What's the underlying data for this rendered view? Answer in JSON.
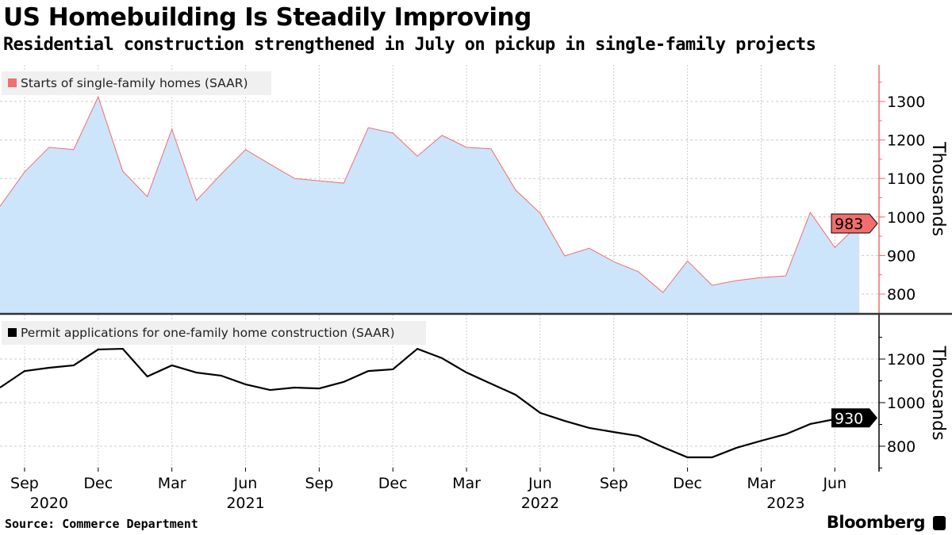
{
  "title": "US Homebuilding Is Steadily Improving",
  "subtitle": "Residential construction strengthened in July on pickup in single-family projects",
  "source": "Source: Commerce Department",
  "brand": "Bloomberg",
  "chart_data": [
    {
      "type": "area",
      "legend": "Starts of single-family homes (SAAR)",
      "ylabel": "Thousands",
      "yticks": [
        800,
        900,
        1000,
        1100,
        1200,
        1300
      ],
      "ylim": [
        750,
        1390
      ],
      "grid": true,
      "legend_position": "top-left",
      "line_color": "#f26d6d",
      "fill_color": "#cce5fb",
      "last_value_label": "983",
      "x": [
        "2020-08",
        "2020-09",
        "2020-10",
        "2020-11",
        "2020-12",
        "2021-01",
        "2021-02",
        "2021-03",
        "2021-04",
        "2021-05",
        "2021-06",
        "2021-07",
        "2021-08",
        "2021-09",
        "2021-10",
        "2021-11",
        "2021-12",
        "2022-01",
        "2022-02",
        "2022-03",
        "2022-04",
        "2022-05",
        "2022-06",
        "2022-07",
        "2022-08",
        "2022-09",
        "2022-10",
        "2022-11",
        "2022-12",
        "2023-01",
        "2023-02",
        "2023-03",
        "2023-04",
        "2023-05",
        "2023-06",
        "2023-07"
      ],
      "values": [
        1028,
        1117,
        1181,
        1175,
        1312,
        1119,
        1053,
        1228,
        1043,
        1111,
        1175,
        1137,
        1100,
        1094,
        1088,
        1232,
        1218,
        1158,
        1212,
        1181,
        1177,
        1070,
        1010,
        899,
        919,
        884,
        858,
        804,
        886,
        823,
        835,
        843,
        847,
        1012,
        921,
        983
      ]
    },
    {
      "type": "line",
      "legend": "Permit applications for one-family home construction (SAAR)",
      "ylabel": "Thousands",
      "yticks": [
        800,
        1000,
        1200
      ],
      "ylim": [
        700,
        1350
      ],
      "grid": true,
      "legend_position": "top-left",
      "line_color": "#000000",
      "last_value_label": "930",
      "x": [
        "2020-08",
        "2020-09",
        "2020-10",
        "2020-11",
        "2020-12",
        "2021-01",
        "2021-02",
        "2021-03",
        "2021-04",
        "2021-05",
        "2021-06",
        "2021-07",
        "2021-08",
        "2021-09",
        "2021-10",
        "2021-11",
        "2021-12",
        "2022-01",
        "2022-02",
        "2022-03",
        "2022-04",
        "2022-05",
        "2022-06",
        "2022-07",
        "2022-08",
        "2022-09",
        "2022-10",
        "2022-11",
        "2022-12",
        "2023-01",
        "2023-02",
        "2023-03",
        "2023-04",
        "2023-05",
        "2023-06",
        "2023-07"
      ],
      "values": [
        1069,
        1145,
        1160,
        1171,
        1244,
        1247,
        1120,
        1171,
        1138,
        1124,
        1084,
        1058,
        1069,
        1065,
        1095,
        1145,
        1153,
        1247,
        1204,
        1138,
        1087,
        1036,
        953,
        916,
        884,
        865,
        847,
        796,
        749,
        749,
        793,
        825,
        855,
        902,
        924,
        930
      ]
    }
  ],
  "x_axis": {
    "ticks": [
      {
        "label": "Sep",
        "index": 1
      },
      {
        "label": "Dec",
        "index": 4
      },
      {
        "label": "Mar",
        "index": 7
      },
      {
        "label": "Jun",
        "index": 10
      },
      {
        "label": "Sep",
        "index": 13
      },
      {
        "label": "Dec",
        "index": 16
      },
      {
        "label": "Mar",
        "index": 19
      },
      {
        "label": "Jun",
        "index": 22
      },
      {
        "label": "Sep",
        "index": 25
      },
      {
        "label": "Dec",
        "index": 28
      },
      {
        "label": "Mar",
        "index": 31
      },
      {
        "label": "Jun",
        "index": 34
      }
    ],
    "years": [
      {
        "label": "2020",
        "index": 2
      },
      {
        "label": "2021",
        "index": 10
      },
      {
        "label": "2022",
        "index": 22
      },
      {
        "label": "2023",
        "index": 32
      }
    ]
  }
}
